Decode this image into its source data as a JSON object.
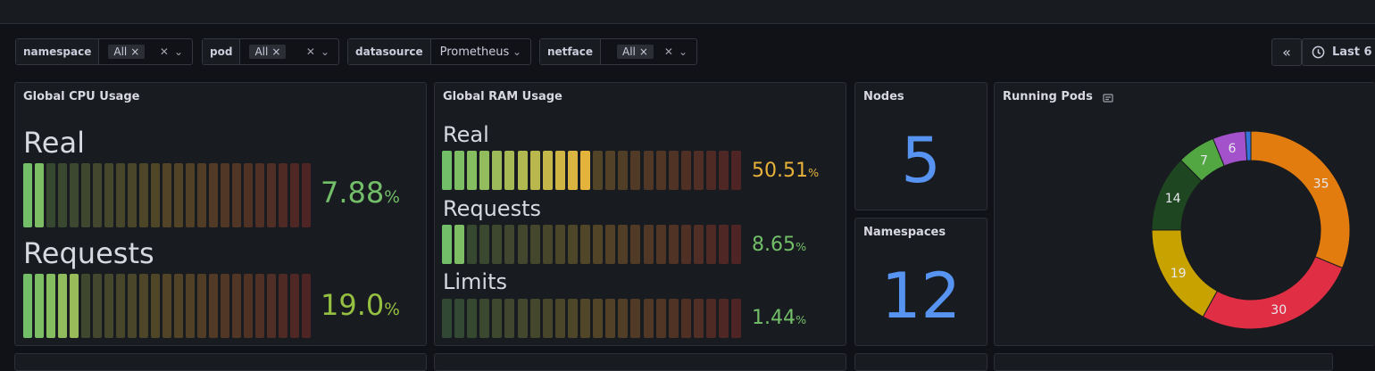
{
  "variables": [
    {
      "label": "namespace",
      "chip": "All"
    },
    {
      "label": "pod",
      "chip": "All"
    },
    {
      "label": "datasource",
      "value": "Prometheus"
    },
    {
      "label": "netface",
      "chip": "All"
    }
  ],
  "icons": {
    "remove": "×",
    "clear": "✕",
    "caret": "⌄",
    "collapse": "«"
  },
  "time_range": {
    "label": "Last 6"
  },
  "cpu_panel": {
    "title": "Global CPU Usage",
    "gauges": [
      {
        "label": "Real",
        "value": "7.88",
        "unit": "%",
        "fraction": 0.0788,
        "color": "#73bf69"
      },
      {
        "label": "Requests",
        "value": "19.0",
        "unit": "%",
        "fraction": 0.19,
        "color": "#96c041"
      }
    ]
  },
  "ram_panel": {
    "title": "Global RAM Usage",
    "gauges": [
      {
        "label": "Real",
        "value": "50.51",
        "unit": "%",
        "fraction": 0.5051,
        "color": "#e8b23a"
      },
      {
        "label": "Requests",
        "value": "8.65",
        "unit": "%",
        "fraction": 0.0865,
        "color": "#73bf69"
      },
      {
        "label": "Limits",
        "value": "1.44",
        "unit": "%",
        "fraction": 0.0144,
        "color": "#73bf69"
      }
    ]
  },
  "nodes_panel": {
    "title": "Nodes",
    "value": "5"
  },
  "namespaces_panel": {
    "title": "Namespaces",
    "value": "12"
  },
  "pods_panel": {
    "title": "Running Pods"
  },
  "chart_data": {
    "type": "pie",
    "values": [
      35,
      30,
      19,
      14,
      7,
      6,
      1
    ],
    "colors": [
      "#e27c0e",
      "#e02f44",
      "#c8a300",
      "#1e4620",
      "#52a743",
      "#a352cc",
      "#3274d9"
    ]
  }
}
